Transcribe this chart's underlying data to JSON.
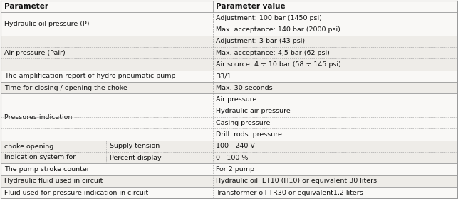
{
  "header": [
    "Parameter",
    "Parameter value"
  ],
  "col_split": 0.465,
  "sub_col_split": 0.232,
  "bg_white": "#f9f8f6",
  "bg_gray": "#eeece8",
  "header_bg": "#f9f8f6",
  "border_color": "#999999",
  "text_color": "#111111",
  "font_size": 6.8,
  "header_font_size": 7.5,
  "rows": [
    {
      "param": "Hydraulic oil pressure (P)",
      "values": [
        "Adjustment: 100 bar (1450 psi)",
        "Max. acceptance: 140 bar (2000 psi)"
      ],
      "sub_col2": null
    },
    {
      "param": "Air pressure (Pair)",
      "values": [
        "Adjustment: 3 bar (43 psi)",
        "Max. acceptance: 4,5 bar (62 psi)",
        "Air source: 4 ÷ 10 bar (58 ÷ 145 psi)"
      ],
      "sub_col2": null
    },
    {
      "param": "The amplification report of hydro pneumatic pump",
      "values": [
        "33/1"
      ],
      "sub_col2": null
    },
    {
      "param": "Time for closing / opening the choke",
      "values": [
        "Max. 30 seconds"
      ],
      "sub_col2": null
    },
    {
      "param": "Pressures indication",
      "values": [
        "Air pressure",
        "Hydraulic air pressure",
        "Casing pressure",
        "Drill  rods  pressure"
      ],
      "sub_col2": null
    },
    {
      "param": "Indication system for\nchoke opening",
      "values": [
        "100 - 240 V",
        "0 - 100 %"
      ],
      "sub_col2": [
        "Supply tension",
        "Percent display"
      ]
    },
    {
      "param": "The pump stroke counter",
      "values": [
        "For 2 pump"
      ],
      "sub_col2": null
    },
    {
      "param": "Hydraulic fluid used in circuit",
      "values": [
        "Hydraulic oil  ET10 (H10) or equivalent 30 liters"
      ],
      "sub_col2": null
    },
    {
      "param": "Fluid used for pressure indication in circuit",
      "values": [
        "Transformer oil TR30 or equivalent1,2 liters"
      ],
      "sub_col2": null
    }
  ]
}
